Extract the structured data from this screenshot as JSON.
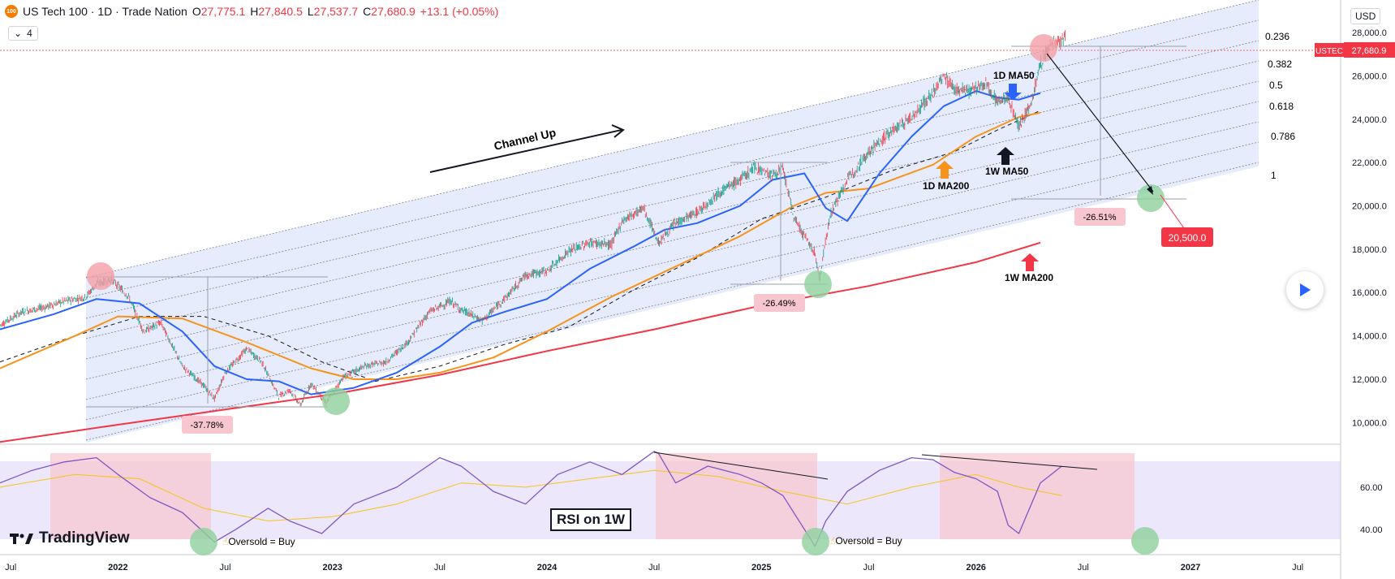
{
  "header": {
    "symbol": "US Tech 100 · 1D · Trade Nation",
    "badge": "100",
    "open_label": "O",
    "open": "27,775.1",
    "high_label": "H",
    "high": "27,840.5",
    "low_label": "L",
    "low": "27,537.7",
    "close_label": "C",
    "close": "27,680.9",
    "change": "+13.1 (+0.05%)",
    "interval_count": "4"
  },
  "currency": "USD",
  "price_tag": {
    "symbol": "USTEC",
    "value": "27,680.9"
  },
  "branding": "TradingView",
  "colors": {
    "ma50_daily": "#2962ff",
    "ma200_daily": "#f7931a",
    "ma200_weekly": "#f23645",
    "rsi": "#7e57c2",
    "rsi_ma": "#f5c518",
    "channel_fill": "#dbe4fb",
    "red_zone": "#f7c6cf",
    "green_circle": "#8fd19e",
    "red_circle": "#f3a0a8"
  },
  "chart_data": [
    {
      "type": "line",
      "panel": "price",
      "x_ticks": [
        "Jul",
        "2022",
        "Jul",
        "2023",
        "Jul",
        "2024",
        "Jul",
        "2025",
        "Jul",
        "2026",
        "Jul",
        "2027",
        "Jul"
      ],
      "y_ticks": [
        "10,000.0",
        "12,000.0",
        "14,000.0",
        "16,000.0",
        "18,000.0",
        "20,000.0",
        "22,000.0",
        "24,000.0",
        "26,000.0",
        "28,000.0"
      ],
      "ylim": [
        9000,
        29500
      ],
      "series": [
        {
          "key": "price",
          "x": [
            2021.45,
            2021.55,
            2021.65,
            2021.75,
            2021.85,
            2021.9,
            2021.97,
            2022.05,
            2022.12,
            2022.2,
            2022.3,
            2022.4,
            2022.45,
            2022.5,
            2022.6,
            2022.67,
            2022.75,
            2022.8,
            2022.85,
            2022.9,
            2022.97,
            2023.05,
            2023.15,
            2023.25,
            2023.35,
            2023.45,
            2023.55,
            2023.6,
            2023.7,
            2023.82,
            2023.9,
            2024.0,
            2024.1,
            2024.2,
            2024.3,
            2024.35,
            2024.45,
            2024.52,
            2024.6,
            2024.7,
            2024.8,
            2024.9,
            2024.97,
            2025.05,
            2025.1,
            2025.15,
            2025.2,
            2025.25,
            2025.27,
            2025.32,
            2025.4,
            2025.5,
            2025.6,
            2025.7,
            2025.8,
            2025.85,
            2025.9,
            2025.97,
            2026.05,
            2026.1,
            2026.15,
            2026.2,
            2026.25,
            2026.3,
            2026.35,
            2026.42
          ],
          "values": [
            14500,
            15100,
            15300,
            15600,
            15800,
            16400,
            16600,
            15800,
            14200,
            14600,
            12600,
            11700,
            11100,
            12300,
            13400,
            12800,
            11200,
            11500,
            10800,
            11800,
            10900,
            12100,
            12600,
            12800,
            13700,
            15100,
            15600,
            15200,
            14700,
            15900,
            16800,
            17000,
            17900,
            18300,
            18200,
            19300,
            19900,
            18300,
            19200,
            19700,
            20600,
            21200,
            21800,
            21400,
            21700,
            19500,
            18600,
            17800,
            16600,
            19600,
            21200,
            22500,
            23400,
            24100,
            25200,
            26000,
            25400,
            25300,
            25600,
            24800,
            25000,
            23700,
            24500,
            26500,
            27500,
            27680
          ]
        },
        {
          "key": "ma50_daily",
          "name": "1D MA50",
          "x": [
            2021.45,
            2021.7,
            2021.9,
            2022.1,
            2022.3,
            2022.45,
            2022.6,
            2022.75,
            2022.9,
            2023.1,
            2023.3,
            2023.5,
            2023.65,
            2023.8,
            2024.0,
            2024.2,
            2024.4,
            2024.55,
            2024.7,
            2024.9,
            2025.05,
            2025.2,
            2025.3,
            2025.4,
            2025.55,
            2025.7,
            2025.85,
            2026.0,
            2026.1,
            2026.2,
            2026.3
          ],
          "values": [
            14300,
            15000,
            15700,
            15500,
            14200,
            12600,
            12000,
            11900,
            11300,
            11600,
            12300,
            13500,
            14600,
            15100,
            15700,
            17100,
            18100,
            18900,
            19200,
            20000,
            21200,
            21500,
            19900,
            19300,
            21500,
            23200,
            24600,
            25300,
            25000,
            24900,
            25200
          ]
        },
        {
          "key": "ma200_daily",
          "name": "1D MA200",
          "x": [
            2021.45,
            2021.8,
            2022.0,
            2022.3,
            2022.6,
            2022.9,
            2023.1,
            2023.3,
            2023.5,
            2023.75,
            2024.0,
            2024.3,
            2024.6,
            2024.9,
            2025.15,
            2025.3,
            2025.5,
            2025.8,
            2026.0,
            2026.2,
            2026.3
          ],
          "values": [
            12500,
            14000,
            14900,
            14800,
            13700,
            12500,
            12000,
            12000,
            12300,
            13000,
            14200,
            15800,
            17200,
            18600,
            20000,
            20600,
            20800,
            21900,
            23200,
            24100,
            24300
          ]
        },
        {
          "key": "ma200_weekly",
          "name": "1W MA200",
          "x": [
            2021.45,
            2022.0,
            2022.5,
            2023.0,
            2023.5,
            2024.0,
            2024.5,
            2025.0,
            2025.5,
            2026.0,
            2026.3
          ],
          "values": [
            9100,
            9900,
            10600,
            11300,
            12200,
            13300,
            14300,
            15400,
            16300,
            17400,
            18300
          ]
        },
        {
          "key": "ma50_weekly",
          "name": "1W MA50",
          "x": [
            2021.45,
            2021.8,
            2022.1,
            2022.4,
            2022.7,
            2022.95,
            2023.2,
            2023.5,
            2023.8,
            2024.1,
            2024.4,
            2024.7,
            2025.0,
            2025.3,
            2025.6,
            2025.9,
            2026.1,
            2026.3
          ],
          "values": [
            12800,
            14000,
            14900,
            14900,
            14000,
            12800,
            11900,
            12600,
            13600,
            14400,
            16100,
            17600,
            19400,
            20400,
            21600,
            22500,
            23500,
            24400
          ]
        }
      ],
      "channel": {
        "name": "Channel Up",
        "levels": [
          "0.236",
          "0.382",
          "0.5",
          "0.618",
          "0.786",
          "1"
        ]
      },
      "annotations": [
        "1D MA50",
        "1W MA50",
        "1D MA200",
        "1W MA200",
        "Channel Up"
      ],
      "drawdowns": [
        "-37.78%",
        "-26.49%",
        "-26.51%"
      ],
      "target": "20,500.0"
    },
    {
      "type": "line",
      "panel": "rsi",
      "title": "RSI on 1W",
      "y_ticks": [
        "40.00",
        "60.00"
      ],
      "ylim": [
        28,
        80
      ],
      "series": [
        {
          "key": "rsi",
          "x": [
            2021.45,
            2021.6,
            2021.75,
            2021.9,
            2022.0,
            2022.15,
            2022.3,
            2022.45,
            2022.55,
            2022.7,
            2022.8,
            2022.95,
            2023.1,
            2023.3,
            2023.5,
            2023.6,
            2023.75,
            2023.9,
            2024.05,
            2024.2,
            2024.35,
            2024.5,
            2024.52,
            2024.6,
            2024.75,
            2024.9,
            2025.0,
            2025.1,
            2025.2,
            2025.25,
            2025.3,
            2025.4,
            2025.55,
            2025.7,
            2025.8,
            2025.9,
            2026.0,
            2026.1,
            2026.15,
            2026.2,
            2026.3,
            2026.4
          ],
          "values": [
            62,
            68,
            72,
            74,
            66,
            55,
            48,
            34,
            40,
            50,
            44,
            38,
            52,
            60,
            74,
            70,
            58,
            52,
            66,
            72,
            66,
            77,
            76,
            62,
            70,
            66,
            62,
            56,
            40,
            32,
            44,
            58,
            68,
            74,
            73,
            67,
            64,
            58,
            42,
            38,
            62,
            70
          ]
        },
        {
          "key": "rsi_ma",
          "x": [
            2021.45,
            2021.8,
            2022.1,
            2022.4,
            2022.7,
            2023.0,
            2023.3,
            2023.6,
            2023.9,
            2024.2,
            2024.5,
            2024.8,
            2025.1,
            2025.4,
            2025.7,
            2026.0,
            2026.2,
            2026.4
          ],
          "values": [
            60,
            66,
            64,
            50,
            44,
            46,
            52,
            62,
            60,
            64,
            68,
            65,
            58,
            52,
            60,
            66,
            60,
            56
          ]
        }
      ],
      "annotations": [
        "Oversold = Buy",
        "Oversold = Buy"
      ]
    }
  ]
}
